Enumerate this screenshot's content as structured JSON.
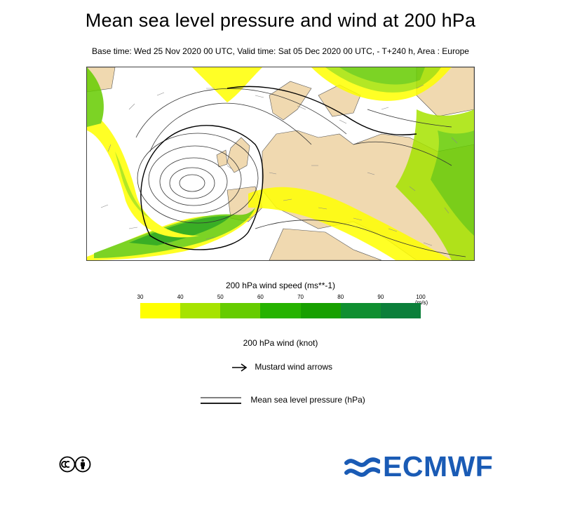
{
  "header": {
    "title": "Mean sea level pressure and wind at 200 hPa",
    "subtitle": "Base time: Wed 25 Nov 2020 00 UTC, Valid time: Sat 05 Dec 2020 00 UTC, - T+240 h, Area : Europe"
  },
  "map": {
    "area": "Europe",
    "land_color": "#f0d9b0",
    "sea_color": "#ffffff"
  },
  "colorbar": {
    "title": "200 hPa wind speed (ms**-1)",
    "unit": "(m/s)",
    "ticks": [
      "30",
      "40",
      "50",
      "60",
      "70",
      "80",
      "90",
      "100"
    ],
    "colors": [
      "#ffff00",
      "#a6e300",
      "#66cc00",
      "#26b300",
      "#17a000",
      "#0f8f30",
      "#0b7f3a",
      "#06704a"
    ]
  },
  "legend": {
    "wind_title": "200 hPa wind (knot)",
    "arrow_label": "Mustard wind arrows",
    "pressure_label": "Mean sea level pressure (hPa)"
  },
  "logos": {
    "cc_icon": "creative-commons-by-icon",
    "org": "ECMWF",
    "brand_color": "#1a5bb5"
  }
}
